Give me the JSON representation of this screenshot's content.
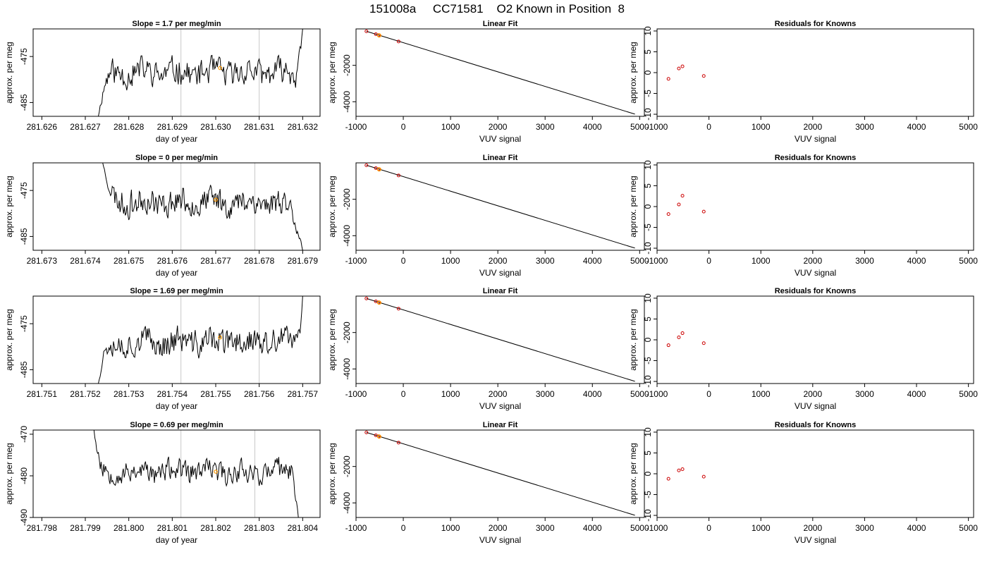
{
  "page": {
    "title": "151008a     CC71581    O2 Known in Position  8"
  },
  "colors": {
    "line": "#000000",
    "gridline": "#c8c8c8",
    "highlight": "#ff9900",
    "residual_point": "#cc0000",
    "background": "#ffffff"
  },
  "chart_data": [
    {
      "type": "line",
      "panel": "timeseries",
      "row": 1,
      "title": "Slope =  1.7  per meg/min",
      "xlabel": "day of year",
      "ylabel": "approx. per meg",
      "xlim": [
        281.6258,
        281.6324
      ],
      "ylim": [
        -488,
        -469
      ],
      "xticks": [
        281.626,
        281.627,
        281.628,
        281.629,
        281.63,
        281.631,
        281.632
      ],
      "xtick_labels": [
        "281.626",
        "281.627",
        "281.628",
        "281.629",
        "281.630",
        "281.631",
        "281.632"
      ],
      "yticks": [
        -475,
        -485
      ],
      "ytick_labels": [
        "-475",
        "-485"
      ],
      "vlines": [
        281.6292,
        281.631
      ],
      "marker": {
        "x": 281.6301,
        "y": -477.5
      },
      "series": [
        {
          "x0": 281.6273,
          "x1": 281.632,
          "seed": 11,
          "start": -488,
          "start_len": 0.00035,
          "base": -478.5,
          "end": -469,
          "end_len": 0.00018,
          "amp": 2.6
        }
      ]
    },
    {
      "type": "scatter",
      "panel": "linear_fit",
      "row": 1,
      "title": "Linear Fit",
      "xlabel": "VUV signal",
      "ylabel": "approx. per meg",
      "xlim": [
        -1000,
        5100
      ],
      "ylim": [
        -4800,
        0
      ],
      "xticks": [
        -1000,
        0,
        1000,
        2000,
        3000,
        4000,
        5000
      ],
      "xtick_labels": [
        "-1000",
        "0",
        "1000",
        "2000",
        "3000",
        "4000",
        "5000"
      ],
      "yticks": [
        -2000,
        -4000
      ],
      "ytick_labels": [
        "-2000",
        "-4000"
      ],
      "line": {
        "x": [
          -780,
          4900
        ],
        "y": [
          -130,
          -4680
        ]
      },
      "points": [
        {
          "x": -780,
          "y": -130
        },
        {
          "x": -580,
          "y": -290
        },
        {
          "x": -520,
          "y": -340
        },
        {
          "x": -100,
          "y": -690
        }
      ],
      "highlight": {
        "x": -510,
        "y": -360
      }
    },
    {
      "type": "scatter",
      "panel": "residuals",
      "row": 1,
      "title": "Residuals for Knowns",
      "xlabel": "VUV signal",
      "ylabel": "approx. per meg",
      "xlim": [
        -1000,
        5100
      ],
      "ylim": [
        -10.5,
        10.5
      ],
      "xticks": [
        -1000,
        0,
        1000,
        2000,
        3000,
        4000,
        5000
      ],
      "xtick_labels": [
        "-1000",
        "0",
        "1000",
        "2000",
        "3000",
        "4000",
        "5000"
      ],
      "yticks": [
        10,
        5,
        0,
        -5,
        -10
      ],
      "ytick_labels": [
        "10",
        "5",
        "0",
        "-5",
        "-10"
      ],
      "points": [
        {
          "x": -780,
          "y": -1.5
        },
        {
          "x": -580,
          "y": 1.0
        },
        {
          "x": -510,
          "y": 1.5
        },
        {
          "x": -100,
          "y": -0.8
        }
      ]
    },
    {
      "type": "line",
      "panel": "timeseries",
      "row": 2,
      "title": "Slope =  0  per meg/min",
      "xlabel": "day of year",
      "ylabel": "approx. per meg",
      "xlim": [
        281.6728,
        281.6794
      ],
      "ylim": [
        -488,
        -469
      ],
      "xticks": [
        281.673,
        281.674,
        281.675,
        281.676,
        281.677,
        281.678,
        281.679
      ],
      "xtick_labels": [
        "281.673",
        "281.674",
        "281.675",
        "281.676",
        "281.677",
        "281.678",
        "281.679"
      ],
      "yticks": [
        -475,
        -485
      ],
      "ytick_labels": [
        "-475",
        "-485"
      ],
      "vlines": [
        281.6762,
        281.6779
      ],
      "marker": {
        "x": 281.677,
        "y": -477.0
      },
      "series": [
        {
          "x0": 281.6744,
          "x1": 281.679,
          "seed": 23,
          "start": -469,
          "start_len": 0.0004,
          "base": -477.5,
          "end": -488,
          "end_len": 0.00045,
          "amp": 2.6
        }
      ]
    },
    {
      "type": "scatter",
      "panel": "linear_fit",
      "row": 2,
      "title": "Linear Fit",
      "xlabel": "VUV signal",
      "ylabel": "approx. per meg",
      "xlim": [
        -1000,
        5100
      ],
      "ylim": [
        -4800,
        0
      ],
      "xticks": [
        -1000,
        0,
        1000,
        2000,
        3000,
        4000,
        5000
      ],
      "xtick_labels": [
        "-1000",
        "0",
        "1000",
        "2000",
        "3000",
        "4000",
        "5000"
      ],
      "yticks": [
        -2000,
        -4000
      ],
      "ytick_labels": [
        "-2000",
        "-4000"
      ],
      "line": {
        "x": [
          -780,
          4900
        ],
        "y": [
          -130,
          -4680
        ]
      },
      "points": [
        {
          "x": -780,
          "y": -130
        },
        {
          "x": -580,
          "y": -290
        },
        {
          "x": -520,
          "y": -340
        },
        {
          "x": -100,
          "y": -690
        }
      ],
      "highlight": {
        "x": -510,
        "y": -360
      }
    },
    {
      "type": "scatter",
      "panel": "residuals",
      "row": 2,
      "title": "Residuals for Knowns",
      "xlabel": "VUV signal",
      "ylabel": "approx. per meg",
      "xlim": [
        -1000,
        5100
      ],
      "ylim": [
        -10.5,
        10.5
      ],
      "xticks": [
        -1000,
        0,
        1000,
        2000,
        3000,
        4000,
        5000
      ],
      "xtick_labels": [
        "-1000",
        "0",
        "1000",
        "2000",
        "3000",
        "4000",
        "5000"
      ],
      "yticks": [
        10,
        5,
        0,
        -5,
        -10
      ],
      "ytick_labels": [
        "10",
        "5",
        "0",
        "-5",
        "-10"
      ],
      "points": [
        {
          "x": -780,
          "y": -1.8
        },
        {
          "x": -580,
          "y": 0.5
        },
        {
          "x": -510,
          "y": 2.6
        },
        {
          "x": -100,
          "y": -1.2
        }
      ]
    },
    {
      "type": "line",
      "panel": "timeseries",
      "row": 3,
      "title": "Slope =  1.69  per meg/min",
      "xlabel": "day of year",
      "ylabel": "approx. per meg",
      "xlim": [
        281.7508,
        281.7574
      ],
      "ylim": [
        -488,
        -469
      ],
      "xticks": [
        281.751,
        281.752,
        281.753,
        281.754,
        281.755,
        281.756,
        281.757
      ],
      "xtick_labels": [
        "281.751",
        "281.752",
        "281.753",
        "281.754",
        "281.755",
        "281.756",
        "281.757"
      ],
      "yticks": [
        -475,
        -485
      ],
      "ytick_labels": [
        "-475",
        "-485"
      ],
      "vlines": [
        281.7542,
        281.756
      ],
      "marker": {
        "x": 281.7551,
        "y": -478.0
      },
      "series": [
        {
          "x0": 281.7523,
          "x1": 281.757,
          "seed": 37,
          "start": -488,
          "start_len": 0.0003,
          "base": -479.0,
          "end": -469,
          "end_len": 0.00015,
          "amp": 2.7
        }
      ]
    },
    {
      "type": "scatter",
      "panel": "linear_fit",
      "row": 3,
      "title": "Linear Fit",
      "xlabel": "VUV signal",
      "ylabel": "approx. per meg",
      "xlim": [
        -1000,
        5100
      ],
      "ylim": [
        -4800,
        0
      ],
      "xticks": [
        -1000,
        0,
        1000,
        2000,
        3000,
        4000,
        5000
      ],
      "xtick_labels": [
        "-1000",
        "0",
        "1000",
        "2000",
        "3000",
        "4000",
        "5000"
      ],
      "yticks": [
        -2000,
        -4000
      ],
      "ytick_labels": [
        "-2000",
        "-4000"
      ],
      "line": {
        "x": [
          -780,
          4900
        ],
        "y": [
          -130,
          -4680
        ]
      },
      "points": [
        {
          "x": -780,
          "y": -130
        },
        {
          "x": -580,
          "y": -290
        },
        {
          "x": -520,
          "y": -340
        },
        {
          "x": -100,
          "y": -690
        }
      ],
      "highlight": {
        "x": -510,
        "y": -360
      }
    },
    {
      "type": "scatter",
      "panel": "residuals",
      "row": 3,
      "title": "Residuals for Knowns",
      "xlabel": "VUV signal",
      "ylabel": "approx. per meg",
      "xlim": [
        -1000,
        5100
      ],
      "ylim": [
        -10.5,
        10.5
      ],
      "xticks": [
        -1000,
        0,
        1000,
        2000,
        3000,
        4000,
        5000
      ],
      "xtick_labels": [
        "-1000",
        "0",
        "1000",
        "2000",
        "3000",
        "4000",
        "5000"
      ],
      "yticks": [
        10,
        5,
        0,
        -5,
        -10
      ],
      "ytick_labels": [
        "10",
        "5",
        "0",
        "-5",
        "-10"
      ],
      "points": [
        {
          "x": -780,
          "y": -1.3
        },
        {
          "x": -580,
          "y": 0.6
        },
        {
          "x": -510,
          "y": 1.6
        },
        {
          "x": -100,
          "y": -0.8
        }
      ]
    },
    {
      "type": "line",
      "panel": "timeseries",
      "row": 4,
      "title": "Slope =  0.69  per meg/min",
      "xlabel": "day of year",
      "ylabel": "approx. per meg",
      "xlim": [
        281.7978,
        281.8044
      ],
      "ylim": [
        -490,
        -469
      ],
      "xticks": [
        281.798,
        281.799,
        281.8,
        281.801,
        281.802,
        281.803,
        281.804
      ],
      "xtick_labels": [
        "281.798",
        "281.799",
        "281.800",
        "281.801",
        "281.802",
        "281.803",
        "281.804"
      ],
      "yticks": [
        -470,
        -480,
        -490
      ],
      "ytick_labels": [
        "-470",
        "-480",
        "-490"
      ],
      "vlines": [
        281.8012,
        281.8029
      ],
      "marker": {
        "x": 281.802,
        "y": -479.0
      },
      "series": [
        {
          "x0": 281.7992,
          "x1": 281.8039,
          "seed": 53,
          "start": -469,
          "start_len": 0.00025,
          "base": -479.0,
          "end": -490,
          "end_len": 0.0002,
          "amp": 2.4
        }
      ]
    },
    {
      "type": "scatter",
      "panel": "linear_fit",
      "row": 4,
      "title": "Linear Fit",
      "xlabel": "VUV signal",
      "ylabel": "approx. per meg",
      "xlim": [
        -1000,
        5100
      ],
      "ylim": [
        -4800,
        0
      ],
      "xticks": [
        -1000,
        0,
        1000,
        2000,
        3000,
        4000,
        5000
      ],
      "xtick_labels": [
        "-1000",
        "0",
        "1000",
        "2000",
        "3000",
        "4000",
        "5000"
      ],
      "yticks": [
        -2000,
        -4000
      ],
      "ytick_labels": [
        "-2000",
        "-4000"
      ],
      "line": {
        "x": [
          -780,
          4900
        ],
        "y": [
          -130,
          -4680
        ]
      },
      "points": [
        {
          "x": -780,
          "y": -130
        },
        {
          "x": -580,
          "y": -290
        },
        {
          "x": -520,
          "y": -340
        },
        {
          "x": -100,
          "y": -690
        }
      ],
      "highlight": {
        "x": -510,
        "y": -360
      }
    },
    {
      "type": "scatter",
      "panel": "residuals",
      "row": 4,
      "title": "Residuals for Knowns",
      "xlabel": "VUV signal",
      "ylabel": "approx. per meg",
      "xlim": [
        -1000,
        5100
      ],
      "ylim": [
        -10.5,
        10.5
      ],
      "xticks": [
        -1000,
        0,
        1000,
        2000,
        3000,
        4000,
        5000
      ],
      "xtick_labels": [
        "-1000",
        "0",
        "1000",
        "2000",
        "3000",
        "4000",
        "5000"
      ],
      "yticks": [
        10,
        5,
        0,
        -5,
        -10
      ],
      "ytick_labels": [
        "10",
        "5",
        "0",
        "-5",
        "-10"
      ],
      "points": [
        {
          "x": -780,
          "y": -1.2
        },
        {
          "x": -580,
          "y": 0.8
        },
        {
          "x": -510,
          "y": 1.1
        },
        {
          "x": -100,
          "y": -0.7
        }
      ]
    }
  ]
}
